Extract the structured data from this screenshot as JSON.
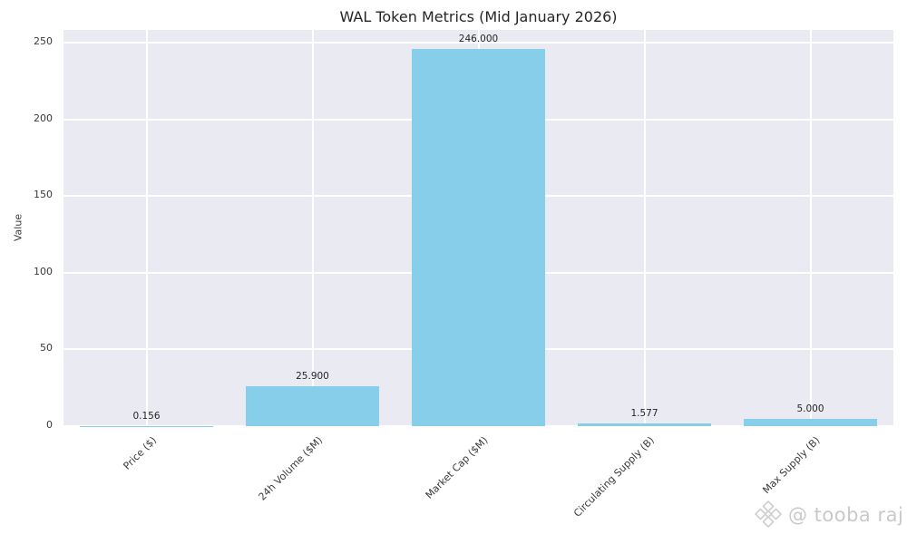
{
  "title": "WAL Token Metrics (Mid January 2026)",
  "watermark": {
    "text": "@ tooba raj",
    "icon": "diamond-logo-icon"
  },
  "colors": {
    "bar": "#87CEEB",
    "plot_background": "#EAEAF2",
    "gridline": "#FFFFFF",
    "title_text": "#262626",
    "tick_text": "#3A3A3A",
    "watermark_text": "#C9C9C9"
  },
  "chart_data": {
    "type": "bar",
    "title": "WAL Token Metrics (Mid January 2026)",
    "categories": [
      "Price ($)",
      "24h Volume ($M)",
      "Market Cap ($M)",
      "Circulating Supply (B)",
      "Max Supply (B)"
    ],
    "values": [
      0.156,
      25.9,
      246.0,
      1.577,
      5.0
    ],
    "bar_labels": [
      "0.156",
      "25.900",
      "246.000",
      "1.577",
      "5.000"
    ],
    "xlabel": "",
    "ylabel": "Value",
    "yticks": [
      0,
      50,
      100,
      150,
      200,
      250
    ],
    "ylim": [
      0,
      258.3
    ],
    "grid": true,
    "legend_position": "none",
    "bar_color": "#87CEEB"
  }
}
